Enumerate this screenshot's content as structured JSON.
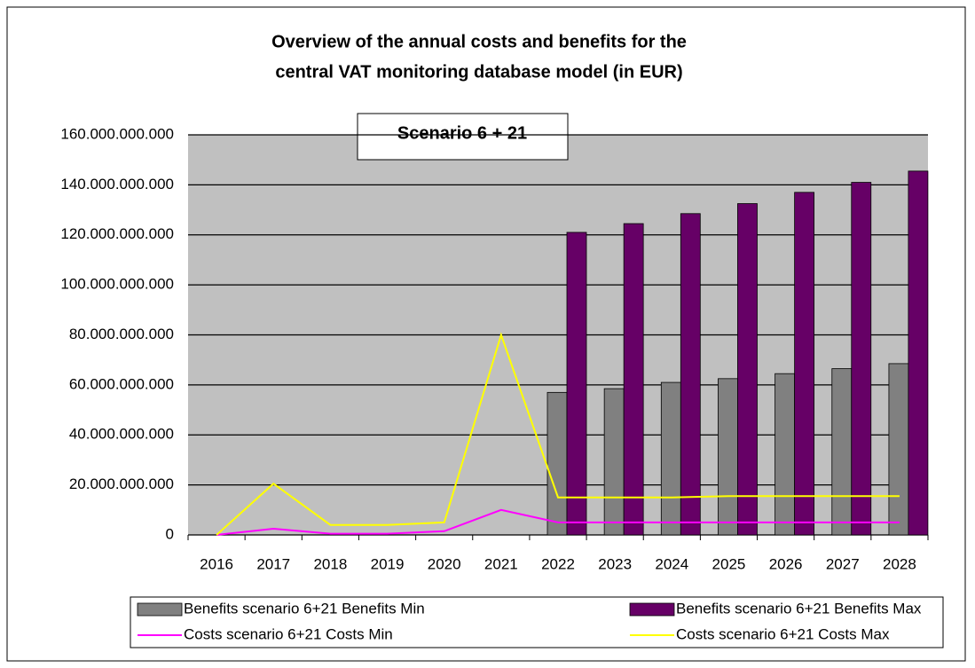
{
  "chart_data": {
    "type": "bar-line",
    "title": [
      "Overview of the annual costs and benefits for the",
      "central VAT monitoring database model (in EUR)"
    ],
    "annotation": "Scenario 6 + 21",
    "categories": [
      "2016",
      "2017",
      "2018",
      "2019",
      "2020",
      "2021",
      "2022",
      "2023",
      "2024",
      "2025",
      "2026",
      "2027",
      "2028"
    ],
    "series": [
      {
        "name": "Benefits scenario 6+21 Benefits Min",
        "kind": "bar",
        "color": "#808080",
        "values": [
          null,
          null,
          null,
          null,
          null,
          null,
          57000000000,
          58500000000,
          61000000000,
          62500000000,
          64500000000,
          66500000000,
          68500000000
        ]
      },
      {
        "name": "Benefits scenario 6+21 Benefits Max",
        "kind": "bar",
        "color": "#660066",
        "values": [
          null,
          null,
          null,
          null,
          null,
          null,
          121000000000,
          124500000000,
          128500000000,
          132500000000,
          137000000000,
          141000000000,
          145500000000
        ]
      },
      {
        "name": "Costs scenario 6+21 Costs Min",
        "kind": "line",
        "color": "#ff00ff",
        "values": [
          0,
          2500000000,
          500000000,
          500000000,
          1500000000,
          10000000000,
          5000000000,
          5000000000,
          5000000000,
          5000000000,
          5000000000,
          5000000000,
          5000000000
        ]
      },
      {
        "name": "Costs scenario 6+21 Costs Max",
        "kind": "line",
        "color": "#ffff00",
        "values": [
          0,
          20500000000,
          4000000000,
          4000000000,
          5000000000,
          80000000000,
          15000000000,
          15000000000,
          15000000000,
          15500000000,
          15500000000,
          15500000000,
          15500000000
        ]
      }
    ],
    "ylim": [
      0,
      160000000000
    ],
    "yticks": [
      0,
      {
        "value": 20000000000,
        "label": "20.000.000.000"
      },
      {
        "value": 40000000000,
        "label": "40.000.000.000"
      },
      {
        "value": 60000000000,
        "label": "60.000.000.000"
      },
      {
        "value": 80000000000,
        "label": "80.000.000.000"
      },
      {
        "value": 100000000000,
        "label": "100.000.000.000"
      },
      {
        "value": 120000000000,
        "label": "120.000.000.000"
      },
      {
        "value": 140000000000,
        "label": "140.000.000.000"
      },
      {
        "value": 160000000000,
        "label": "160.000.000.000"
      }
    ],
    "grid": true
  }
}
